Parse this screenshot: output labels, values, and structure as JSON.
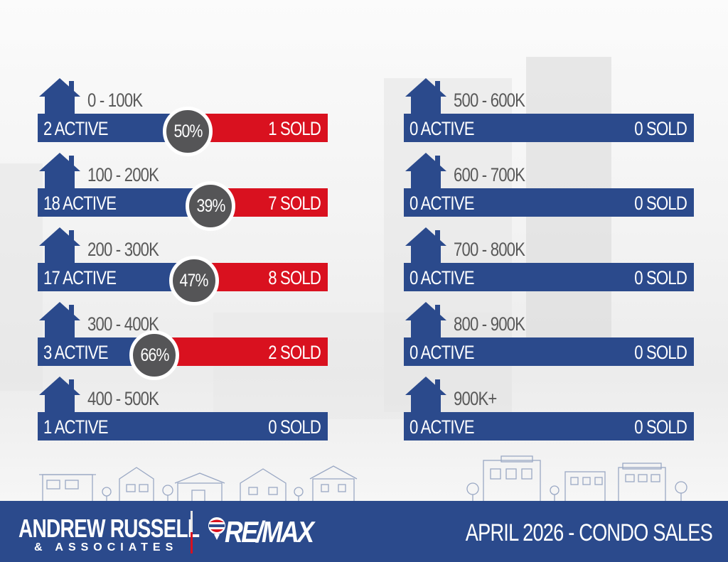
{
  "colors": {
    "blue": "#2b4a8c",
    "red": "#d9111f",
    "badge": "#555557",
    "range_text": "#595959"
  },
  "left_rows": [
    {
      "range": "0 - 100K",
      "active": "2 ACTIVE",
      "sold": "1 SOLD",
      "percent": "50%",
      "sold_share": 0.5
    },
    {
      "range": "100 - 200K",
      "active": "18 ACTIVE",
      "sold": "7 SOLD",
      "percent": "39%",
      "sold_share": 0.39
    },
    {
      "range": "200 - 300K",
      "active": "17 ACTIVE",
      "sold": "8 SOLD",
      "percent": "47%",
      "sold_share": 0.47
    },
    {
      "range": "300 - 400K",
      "active": "3 ACTIVE",
      "sold": "2 SOLD",
      "percent": "66%",
      "sold_share": 0.66
    },
    {
      "range": "400 - 500K",
      "active": "1 ACTIVE",
      "sold": "0 SOLD",
      "percent": null,
      "sold_share": 0
    }
  ],
  "right_rows": [
    {
      "range": "500 - 600K",
      "active": "0 ACTIVE",
      "sold": "0 SOLD",
      "percent": null,
      "sold_share": 0
    },
    {
      "range": "600 - 700K",
      "active": "0 ACTIVE",
      "sold": "0 SOLD",
      "percent": null,
      "sold_share": 0
    },
    {
      "range": "700 - 800K",
      "active": "0 ACTIVE",
      "sold": "0 SOLD",
      "percent": null,
      "sold_share": 0
    },
    {
      "range": "800 - 900K",
      "active": "0 ACTIVE",
      "sold": "0 SOLD",
      "percent": null,
      "sold_share": 0
    },
    {
      "range": "900K+",
      "active": "0 ACTIVE",
      "sold": "0 SOLD",
      "percent": null,
      "sold_share": 0
    }
  ],
  "footer": {
    "brand_name": "ANDREW RUSSELL",
    "brand_sub": "& ASSOCIATES",
    "logo_text": "RE/MAX",
    "report_title": "APRIL 2026 -  CONDO SALES"
  },
  "icons": {
    "row_icon": "house-icon",
    "logo_icon": "balloon-icon",
    "skyline": "city-skyline-illustration"
  }
}
